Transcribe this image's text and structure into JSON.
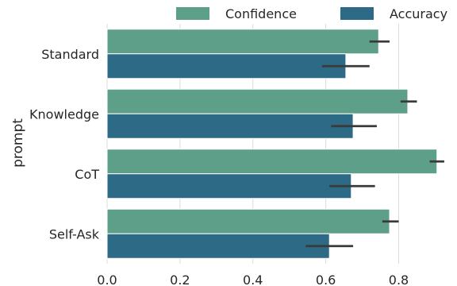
{
  "chart_data": {
    "type": "bar",
    "orientation": "horizontal",
    "ylabel": "prompt",
    "xlabel": "",
    "xlim": [
      0,
      0.96
    ],
    "xticks": [
      0.0,
      0.2,
      0.4,
      0.6,
      0.8
    ],
    "xtick_labels": [
      "0.0",
      "0.2",
      "0.4",
      "0.6",
      "0.8"
    ],
    "grid": true,
    "legend_position": "top",
    "categories": [
      "Standard",
      "Knowledge",
      "CoT",
      "Self-Ask"
    ],
    "series": [
      {
        "name": "Confidence",
        "color": "#5e9f8a",
        "values": [
          0.745,
          0.825,
          0.905,
          0.775
        ],
        "error": [
          [
            0.72,
            0.775
          ],
          [
            0.805,
            0.85
          ],
          [
            0.885,
            0.925
          ],
          [
            0.755,
            0.8
          ]
        ]
      },
      {
        "name": "Accuracy",
        "color": "#2d6a86",
        "values": [
          0.655,
          0.675,
          0.67,
          0.61
        ],
        "error": [
          [
            0.59,
            0.72
          ],
          [
            0.615,
            0.74
          ],
          [
            0.61,
            0.735
          ],
          [
            0.545,
            0.675
          ]
        ]
      }
    ]
  }
}
